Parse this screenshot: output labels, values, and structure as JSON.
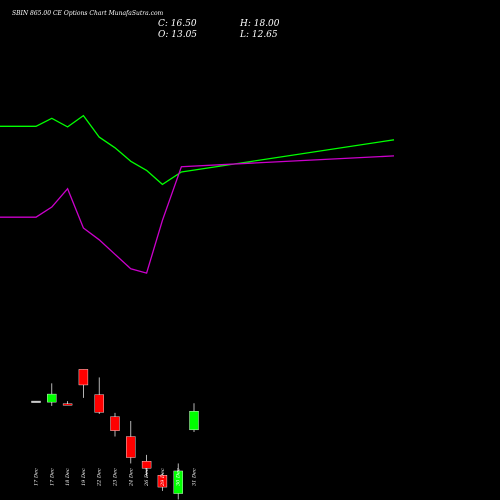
{
  "header": {
    "title": "SBIN  865.00  CE Options  Chart MunafaSutra.com",
    "close": "C: 16.50",
    "high": "H: 18.00",
    "open": "O: 13.05",
    "low": "L: 12.65"
  },
  "colors": {
    "background": "#000000",
    "upper_band": "#00ff00",
    "lower_band": "#cc00cc",
    "up_candle": "#00ff00",
    "down_candle": "#ff0000",
    "flat_candle": "#ffffff",
    "text": "#ffffff"
  },
  "chart_data": {
    "type": "candlestick",
    "title": "SBIN 865.00 CE Options Chart MunafaSutra.com",
    "categories": [
      "17 Dec",
      "17 Dec",
      "18 Dec",
      "19 Dec",
      "22 Dec",
      "23 Dec",
      "24 Dec",
      "26 Dec",
      "29 Dec",
      "30 Dec",
      "31 Dec"
    ],
    "candles": [
      {
        "open": 18.35,
        "high": 18.4,
        "low": 18.3,
        "close": 18.4
      },
      {
        "open": 18.2,
        "high": 21.7,
        "low": 17.5,
        "close": 19.7
      },
      {
        "open": 17.9,
        "high": 18.4,
        "low": 17.7,
        "close": 17.7
      },
      {
        "open": 24.3,
        "high": 24.3,
        "low": 19.0,
        "close": 21.4
      },
      {
        "open": 19.6,
        "high": 22.8,
        "low": 16.0,
        "close": 16.3
      },
      {
        "open": 15.5,
        "high": 16.2,
        "low": 11.8,
        "close": 12.9
      },
      {
        "open": 11.8,
        "high": 14.7,
        "low": 6.8,
        "close": 7.9
      },
      {
        "open": 7.2,
        "high": 8.4,
        "low": 4.4,
        "close": 5.9
      },
      {
        "open": 4.6,
        "high": 4.8,
        "low": 1.7,
        "close": 2.4
      },
      {
        "open": 1.2,
        "high": 6.8,
        "low": 0.1,
        "close": 5.4
      },
      {
        "open": 13.05,
        "high": 18.0,
        "low": 12.65,
        "close": 16.5
      }
    ],
    "upper_band": [
      69.5,
      69.5,
      71.0,
      69.4,
      71.5,
      67.5,
      65.5,
      63.0,
      61.3,
      58.7,
      61.0,
      67.0
    ],
    "lower_band": [
      52.6,
      52.6,
      54.5,
      57.9,
      50.6,
      48.4,
      45.7,
      43.0,
      42.2,
      52.0,
      62.0,
      64.0
    ],
    "band_x_index": [
      -1,
      0,
      1,
      2,
      3,
      4,
      5,
      6,
      7,
      8,
      9,
      10
    ],
    "ylim": [
      0,
      93
    ]
  }
}
